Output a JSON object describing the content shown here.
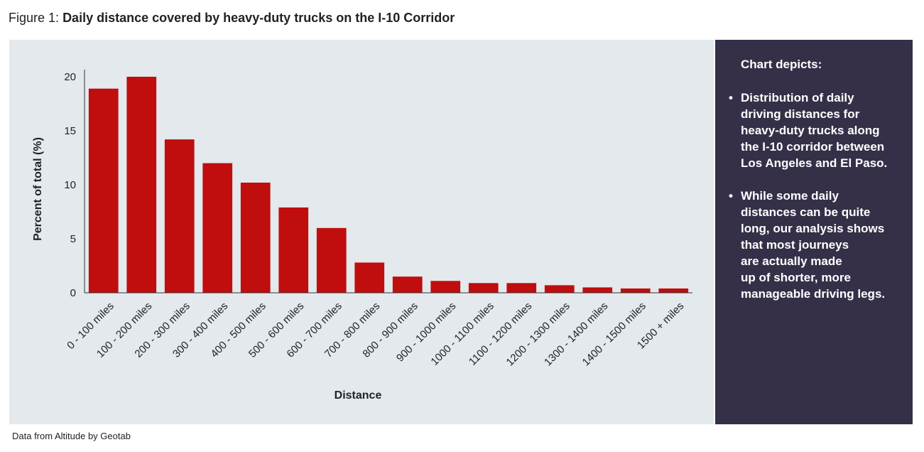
{
  "figure": {
    "label": "Figure 1:",
    "title": "Daily distance covered by heavy-duty trucks on the I-10 Corridor"
  },
  "source_note": "Data from Altitude by Geotab",
  "side_panel": {
    "heading": "Chart depicts:",
    "bullets": [
      "Distribution of daily driving distances for heavy-duty trucks along the I-10 corridor between Los Angeles and El Paso.",
      "While some daily distances can be quite long, our analysis shows that most journeys are actually made up of shorter, more manageable driving legs."
    ],
    "bullet_lines": [
      [
        "Distribution of daily",
        "driving distances for",
        "heavy-duty trucks along",
        "the I-10 corridor between",
        "Los Angeles and El Paso."
      ],
      [
        "While some daily",
        "distances can be quite",
        "long, our analysis shows",
        "that most journeys",
        "are actually made",
        "up of shorter, more",
        "manageable driving legs."
      ]
    ]
  },
  "colors": {
    "bar": "#c00d0d",
    "panel_bg": "#e3e9ec",
    "side_bg": "#353048",
    "axis": "#333333"
  },
  "chart_data": {
    "type": "bar",
    "title": "Daily distance covered by heavy-duty trucks on the I-10 Corridor",
    "xlabel": "Distance",
    "ylabel": "Percent of total (%)",
    "ylim": [
      0,
      20
    ],
    "yticks": [
      0,
      5,
      10,
      15,
      20
    ],
    "grid": false,
    "categories": [
      "0 - 100 miles",
      "100 - 200 miles",
      "200 - 300 miles",
      "300 - 400 miles",
      "400 - 500 miles",
      "500 - 600 miles",
      "600 - 700 miles",
      "700 - 800 miles",
      "800 - 900 miles",
      "900 - 1000 miles",
      "1000 - 1100 miles",
      "1100 - 1200 miles",
      "1200 - 1300 miles",
      "1300 - 1400 miles",
      "1400 - 1500 miles",
      "1500 + miles"
    ],
    "values": [
      18.9,
      20.0,
      14.2,
      12.0,
      10.2,
      7.9,
      6.0,
      2.8,
      1.5,
      1.1,
      0.9,
      0.9,
      0.7,
      0.5,
      0.4,
      0.4
    ]
  }
}
